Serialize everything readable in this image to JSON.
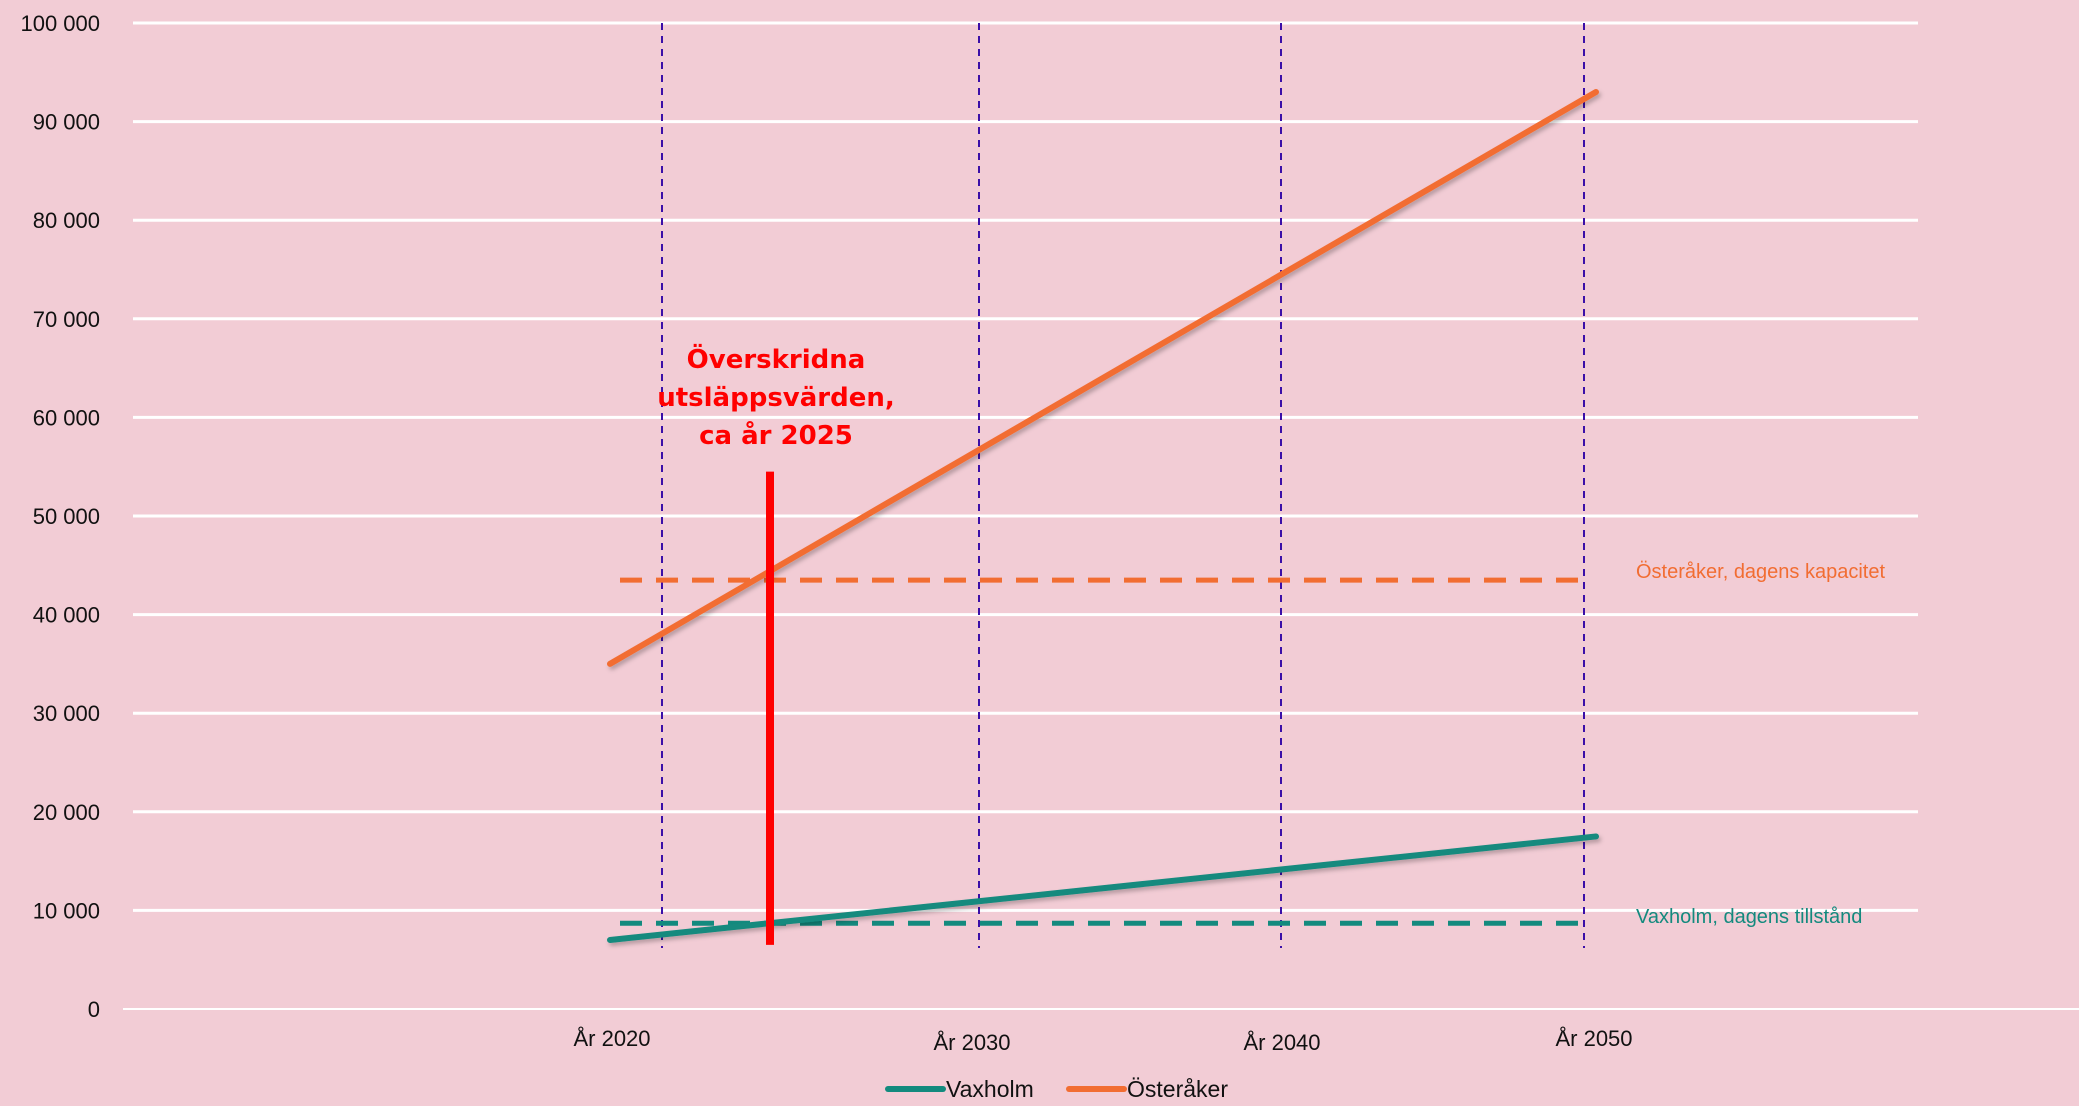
{
  "chart_data": {
    "type": "line",
    "title": "",
    "xlabel": "",
    "ylabel": "",
    "ylim": [
      0,
      100000
    ],
    "yticks": [
      0,
      10000,
      20000,
      30000,
      40000,
      50000,
      60000,
      70000,
      80000,
      90000,
      100000
    ],
    "ytick_labels": [
      "0",
      "10 000",
      "20 000",
      "30 000",
      "40 000",
      "50 000",
      "60 000",
      "70 000",
      "80 000",
      "90 000",
      "100 000"
    ],
    "x_categories": [
      "År 2020",
      "År 2030",
      "År 2040",
      "År 2050"
    ],
    "grid": "horizontal",
    "series": [
      {
        "name": "Vaxholm",
        "color": "#138a7e",
        "points": [
          {
            "x": "År 2020",
            "y": 7000
          },
          {
            "x": "År 2050",
            "y": 17500
          }
        ]
      },
      {
        "name": "Österåker",
        "color": "#f26d32",
        "points": [
          {
            "x": "År 2020",
            "y": 35000
          },
          {
            "x": "År 2050",
            "y": 93000
          }
        ]
      }
    ],
    "reference_lines": [
      {
        "label": "Österåker, dagens kapacitet",
        "y": 43500,
        "color": "#f26d32",
        "style": "dashed"
      },
      {
        "label": "Vaxholm, dagens tillstånd",
        "y": 8700,
        "color": "#138a7e",
        "style": "dashed"
      }
    ],
    "category_markers": {
      "color": "#3b0fa8",
      "style": "dashed"
    },
    "annotation": {
      "lines": [
        "Överskridna",
        "utsläppsvärden,",
        "ca år 2025"
      ],
      "x": "ca år 2025",
      "color": "#ff0000",
      "marker_y_range": [
        6500,
        54500
      ]
    },
    "legend": {
      "placement": "bottom-center",
      "entries": [
        "Vaxholm",
        "Österåker"
      ]
    }
  }
}
